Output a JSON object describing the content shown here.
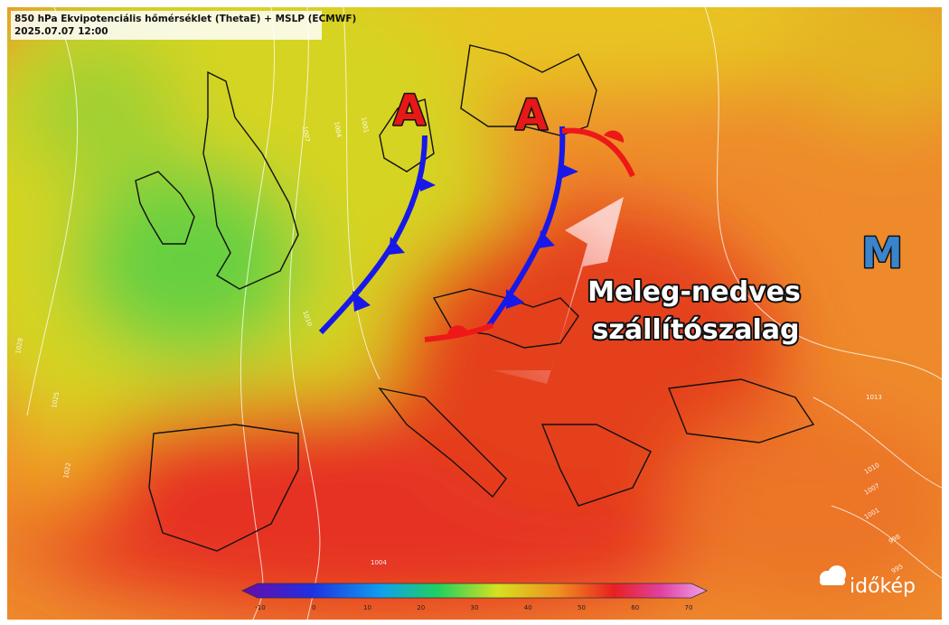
{
  "header": {
    "title": "850 hPa Ekvipotenciális hőmérséklet (ThetaE) + MSLP (ECMWF)",
    "date": "2025.07.07 12:00"
  },
  "pressure_centers": [
    "A",
    "A",
    "M"
  ],
  "annotation": [
    "Meleg-nedves",
    "szállítószalag"
  ],
  "isobar_labels": [
    1028,
    1025,
    1022,
    1010,
    1007,
    1004,
    1001,
    1013,
    1010,
    1007,
    1001,
    998,
    995,
    1004
  ],
  "colorbar": {
    "ticks": [
      -10,
      0,
      10,
      20,
      30,
      40,
      50,
      60,
      70
    ]
  },
  "logo": "időkép"
}
